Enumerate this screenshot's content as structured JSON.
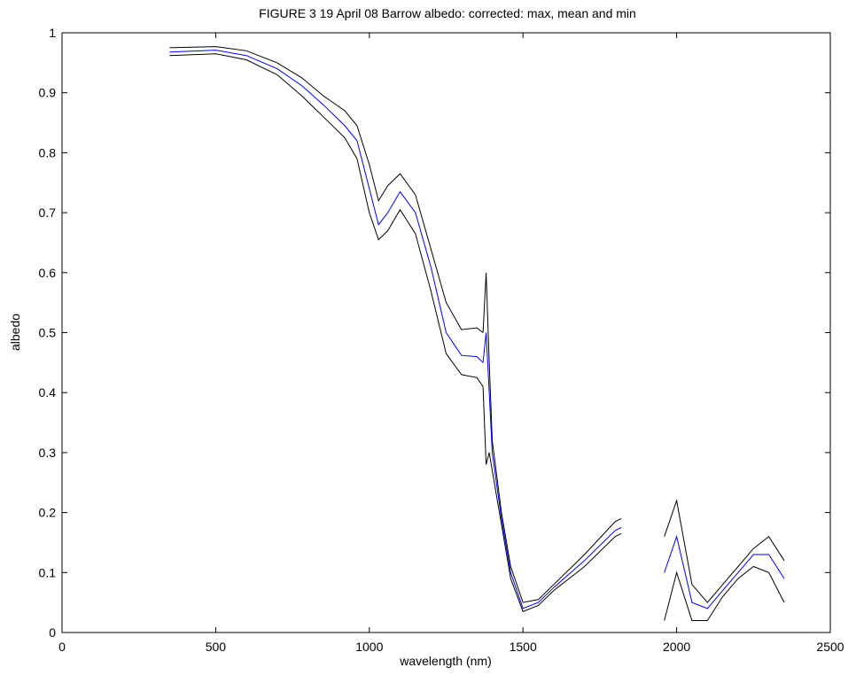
{
  "chart_data": {
    "type": "line",
    "title": "FIGURE 3  19 April 08 Barrow albedo: corrected: max, mean and min",
    "xlabel": "wavelength (nm)",
    "ylabel": "albedo",
    "xlim": [
      0,
      2500
    ],
    "ylim": [
      0,
      1
    ],
    "xticks": [
      "0",
      "500",
      "1000",
      "1500",
      "2000",
      "2500"
    ],
    "yticks": [
      "0",
      "0.1",
      "0.2",
      "0.3",
      "0.4",
      "0.5",
      "0.6",
      "0.7",
      "0.8",
      "0.9",
      "1"
    ],
    "grid": false,
    "legend": "none",
    "segments": [
      [
        350,
        1370
      ],
      [
        1370,
        1820
      ],
      [
        1960,
        2350
      ]
    ],
    "series": [
      {
        "role": "max",
        "color": "#000000",
        "points": [
          [
            350,
            0.975
          ],
          [
            500,
            0.977
          ],
          [
            600,
            0.97
          ],
          [
            700,
            0.95
          ],
          [
            780,
            0.925
          ],
          [
            850,
            0.895
          ],
          [
            920,
            0.87
          ],
          [
            960,
            0.845
          ],
          [
            1000,
            0.78
          ],
          [
            1030,
            0.72
          ],
          [
            1060,
            0.745
          ],
          [
            1100,
            0.765
          ],
          [
            1150,
            0.73
          ],
          [
            1200,
            0.64
          ],
          [
            1250,
            0.55
          ],
          [
            1300,
            0.505
          ],
          [
            1350,
            0.508
          ],
          [
            1370,
            0.5
          ],
          [
            1380,
            0.6
          ],
          [
            1390,
            0.45
          ],
          [
            1400,
            0.32
          ],
          [
            1430,
            0.2
          ],
          [
            1460,
            0.11
          ],
          [
            1500,
            0.05
          ],
          [
            1550,
            0.055
          ],
          [
            1600,
            0.08
          ],
          [
            1700,
            0.13
          ],
          [
            1800,
            0.185
          ],
          [
            1820,
            0.19
          ],
          [
            1960,
            0.16
          ],
          [
            2000,
            0.22
          ],
          [
            2050,
            0.08
          ],
          [
            2100,
            0.05
          ],
          [
            2150,
            0.08
          ],
          [
            2200,
            0.11
          ],
          [
            2250,
            0.14
          ],
          [
            2300,
            0.16
          ],
          [
            2350,
            0.12
          ]
        ]
      },
      {
        "role": "mean",
        "color": "#0000ff",
        "points": [
          [
            350,
            0.968
          ],
          [
            500,
            0.971
          ],
          [
            600,
            0.962
          ],
          [
            700,
            0.94
          ],
          [
            780,
            0.912
          ],
          [
            850,
            0.88
          ],
          [
            920,
            0.845
          ],
          [
            960,
            0.82
          ],
          [
            1000,
            0.74
          ],
          [
            1030,
            0.68
          ],
          [
            1060,
            0.7
          ],
          [
            1100,
            0.735
          ],
          [
            1150,
            0.7
          ],
          [
            1200,
            0.61
          ],
          [
            1250,
            0.5
          ],
          [
            1300,
            0.462
          ],
          [
            1350,
            0.46
          ],
          [
            1370,
            0.45
          ],
          [
            1380,
            0.5
          ],
          [
            1390,
            0.4
          ],
          [
            1400,
            0.3
          ],
          [
            1430,
            0.19
          ],
          [
            1460,
            0.1
          ],
          [
            1500,
            0.04
          ],
          [
            1550,
            0.05
          ],
          [
            1600,
            0.075
          ],
          [
            1700,
            0.12
          ],
          [
            1800,
            0.17
          ],
          [
            1820,
            0.175
          ],
          [
            1960,
            0.1
          ],
          [
            2000,
            0.16
          ],
          [
            2050,
            0.05
          ],
          [
            2100,
            0.04
          ],
          [
            2150,
            0.07
          ],
          [
            2200,
            0.1
          ],
          [
            2250,
            0.13
          ],
          [
            2300,
            0.13
          ],
          [
            2350,
            0.09
          ]
        ]
      },
      {
        "role": "min",
        "color": "#000000",
        "points": [
          [
            350,
            0.962
          ],
          [
            500,
            0.965
          ],
          [
            600,
            0.955
          ],
          [
            700,
            0.93
          ],
          [
            780,
            0.895
          ],
          [
            850,
            0.86
          ],
          [
            920,
            0.825
          ],
          [
            960,
            0.79
          ],
          [
            1000,
            0.7
          ],
          [
            1030,
            0.655
          ],
          [
            1060,
            0.67
          ],
          [
            1100,
            0.705
          ],
          [
            1150,
            0.665
          ],
          [
            1200,
            0.57
          ],
          [
            1250,
            0.465
          ],
          [
            1300,
            0.43
          ],
          [
            1350,
            0.425
          ],
          [
            1370,
            0.41
          ],
          [
            1380,
            0.28
          ],
          [
            1390,
            0.3
          ],
          [
            1400,
            0.27
          ],
          [
            1430,
            0.18
          ],
          [
            1460,
            0.09
          ],
          [
            1500,
            0.035
          ],
          [
            1550,
            0.045
          ],
          [
            1600,
            0.07
          ],
          [
            1700,
            0.11
          ],
          [
            1800,
            0.16
          ],
          [
            1820,
            0.165
          ],
          [
            1960,
            0.02
          ],
          [
            2000,
            0.1
          ],
          [
            2050,
            0.02
          ],
          [
            2100,
            0.02
          ],
          [
            2150,
            0.06
          ],
          [
            2200,
            0.09
          ],
          [
            2250,
            0.11
          ],
          [
            2300,
            0.1
          ],
          [
            2350,
            0.05
          ]
        ]
      }
    ]
  }
}
